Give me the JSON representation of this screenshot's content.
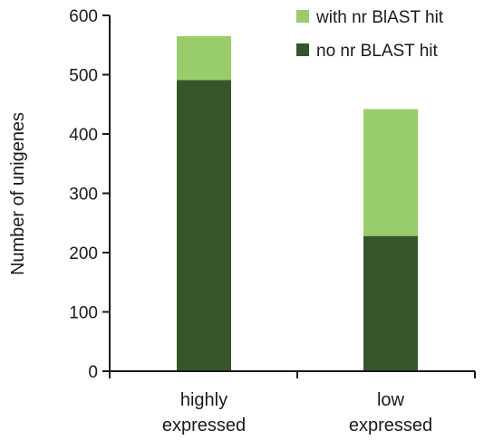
{
  "chart_data": {
    "type": "bar",
    "stacked": true,
    "categories": [
      [
        "highly",
        "expressed"
      ],
      [
        "low",
        "expressed"
      ]
    ],
    "series": [
      {
        "name": "no nr BLAST hit",
        "values": [
          491,
          228
        ],
        "color": "#37552a"
      },
      {
        "name": "with nr BlAST hit",
        "values": [
          74,
          214
        ],
        "color": "#99cc6a"
      }
    ],
    "ylabel": "Number of unigenes",
    "xlabel": "",
    "ylim": [
      0,
      600
    ],
    "yticks": [
      0,
      100,
      200,
      300,
      400,
      500,
      600
    ],
    "legend": {
      "placement": "top-right",
      "entries": [
        "with nr BlAST hit",
        "no nr BLAST hit"
      ]
    },
    "grid": false
  }
}
